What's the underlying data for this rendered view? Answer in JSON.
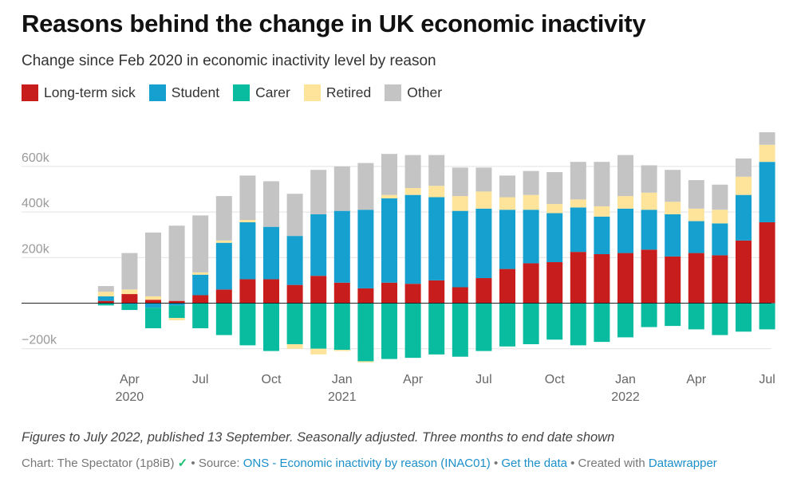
{
  "title": "Reasons behind the change in UK economic inactivity",
  "subtitle": "Change since Feb 2020 in economic inactivity level by reason",
  "notes": "Figures to July 2022, published 13 September. Seasonally adjusted. Three months to end date shown",
  "footer": {
    "credit": "Chart: The Spectator (1p8iB)",
    "sep1": " • Source: ",
    "source": "ONS - Economic inactivity by reason (INAC01)",
    "sep2": " • ",
    "get_data": "Get the data",
    "sep3": " • Created with ",
    "tool": "Datawrapper",
    "tool_icon": "datawrapper-icon"
  },
  "colors": {
    "long_term_sick": "#c71e1d",
    "student": "#15a0d0",
    "carer": "#09bb9f",
    "retired": "#fde49a",
    "other": "#c4c4c4"
  },
  "chart_data": {
    "type": "bar",
    "stacked": true,
    "ylim": [
      -250000,
      750000
    ],
    "yticks": [
      -200000,
      200000,
      400000,
      600000
    ],
    "ytick_labels": [
      "−200k",
      "200k",
      "400k",
      "600k"
    ],
    "grid": true,
    "legend_position": "top-left",
    "categories": [
      "2020-03",
      "2020-04",
      "2020-05",
      "2020-06",
      "2020-07",
      "2020-08",
      "2020-09",
      "2020-10",
      "2020-11",
      "2020-12",
      "2021-01",
      "2021-02",
      "2021-03",
      "2021-04",
      "2021-05",
      "2021-06",
      "2021-07",
      "2021-08",
      "2021-09",
      "2021-10",
      "2021-11",
      "2021-12",
      "2022-01",
      "2022-02",
      "2022-03",
      "2022-04",
      "2022-05",
      "2022-06",
      "2022-07"
    ],
    "x_tick_labels": [
      {
        "category": "2020-04",
        "month": "Apr",
        "year": "2020"
      },
      {
        "category": "2020-07",
        "month": "Jul",
        "year": ""
      },
      {
        "category": "2020-10",
        "month": "Oct",
        "year": ""
      },
      {
        "category": "2021-01",
        "month": "Jan",
        "year": "2021"
      },
      {
        "category": "2021-04",
        "month": "Apr",
        "year": ""
      },
      {
        "category": "2021-07",
        "month": "Jul",
        "year": ""
      },
      {
        "category": "2021-10",
        "month": "Oct",
        "year": ""
      },
      {
        "category": "2022-01",
        "month": "Jan",
        "year": "2022"
      },
      {
        "category": "2022-04",
        "month": "Apr",
        "year": ""
      },
      {
        "category": "2022-07",
        "month": "Jul",
        "year": ""
      }
    ],
    "series": [
      {
        "name": "Long-term sick",
        "color_key": "long_term_sick",
        "values": [
          10000,
          40000,
          15000,
          10000,
          35000,
          60000,
          105000,
          105000,
          80000,
          120000,
          90000,
          65000,
          90000,
          85000,
          100000,
          70000,
          110000,
          150000,
          175000,
          180000,
          225000,
          215000,
          220000,
          235000,
          205000,
          220000,
          210000,
          275000,
          355000
        ]
      },
      {
        "name": "Student",
        "color_key": "student",
        "values": [
          20000,
          -5000,
          -20000,
          -10000,
          90000,
          205000,
          250000,
          230000,
          215000,
          270000,
          315000,
          345000,
          370000,
          390000,
          365000,
          335000,
          305000,
          260000,
          235000,
          215000,
          195000,
          165000,
          195000,
          175000,
          185000,
          140000,
          140000,
          200000,
          265000
        ]
      },
      {
        "name": "Carer",
        "color_key": "carer",
        "values": [
          -10000,
          -25000,
          -90000,
          -55000,
          -110000,
          -140000,
          -185000,
          -210000,
          -180000,
          -200000,
          -205000,
          -255000,
          -245000,
          -240000,
          -225000,
          -235000,
          -210000,
          -190000,
          -180000,
          -160000,
          -185000,
          -170000,
          -150000,
          -105000,
          -100000,
          -115000,
          -140000,
          -125000,
          -115000
        ]
      },
      {
        "name": "Retired",
        "color_key": "retired",
        "values": [
          20000,
          20000,
          15000,
          -10000,
          10000,
          10000,
          10000,
          0,
          -20000,
          -25000,
          -5000,
          -5000,
          15000,
          30000,
          50000,
          65000,
          75000,
          55000,
          65000,
          40000,
          35000,
          45000,
          55000,
          75000,
          55000,
          55000,
          60000,
          80000,
          75000
        ]
      },
      {
        "name": "Other",
        "color_key": "other",
        "values": [
          25000,
          160000,
          280000,
          330000,
          250000,
          195000,
          195000,
          200000,
          185000,
          195000,
          195000,
          205000,
          180000,
          145000,
          135000,
          125000,
          105000,
          95000,
          105000,
          140000,
          165000,
          195000,
          180000,
          120000,
          140000,
          125000,
          110000,
          80000,
          55000
        ]
      }
    ]
  }
}
